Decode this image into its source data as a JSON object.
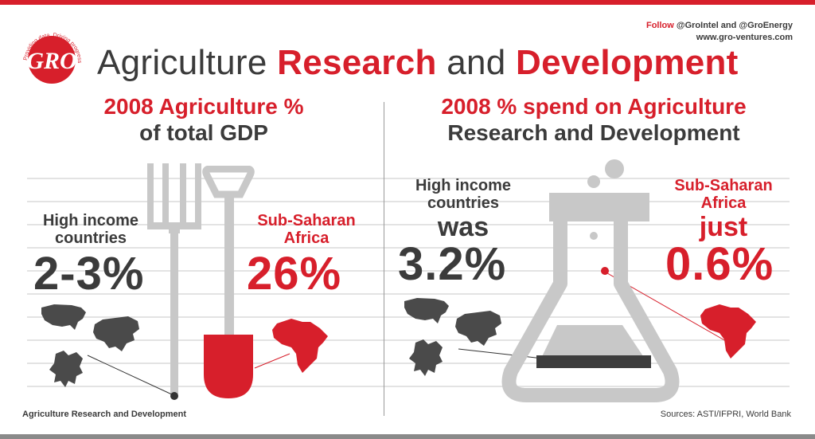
{
  "header": {
    "title_part1": "Agriculture ",
    "title_part2": "Research",
    "title_part3": " and ",
    "title_part4": "Development",
    "follow_word": "Follow",
    "follow_handles": " @GroIntel and @GroEnergy",
    "website": "www.gro-ventures.com",
    "logo_text": "GRO",
    "logo_tagline": "Providing data. Driving progress."
  },
  "left_panel": {
    "heading_line1": "2008 Agriculture %",
    "heading_line2": "of total GDP",
    "high_income_label_line1": "High income",
    "high_income_label_line2": "countries",
    "high_income_value": "2-3%",
    "ssa_label_line1": "Sub-Saharan",
    "ssa_label_line2": "Africa",
    "ssa_value": "26%"
  },
  "right_panel": {
    "heading_line1": "2008 % spend on Agriculture",
    "heading_line2": "Research and Development",
    "high_income_label_line1": "High income",
    "high_income_label_line2": "countries",
    "high_income_word": "was",
    "high_income_value": "3.2%",
    "ssa_label_line1": "Sub-Saharan",
    "ssa_label_line2": "Africa",
    "ssa_word": "just",
    "ssa_value": "0.6%"
  },
  "footer": {
    "left": "Agriculture Research and Development",
    "right": "Sources: ASTI/IFPRI, World Bank"
  },
  "colors": {
    "accent": "#d71f2b",
    "text": "#3b3b3b",
    "illustration": "#c8c8c8",
    "maps": "#4a4a4a"
  },
  "icons": [
    "pitchfork-icon",
    "shovel-icon",
    "flask-icon",
    "usa-map-icon",
    "europe-map-icon",
    "asia-map-icon",
    "africa-map-icon"
  ]
}
